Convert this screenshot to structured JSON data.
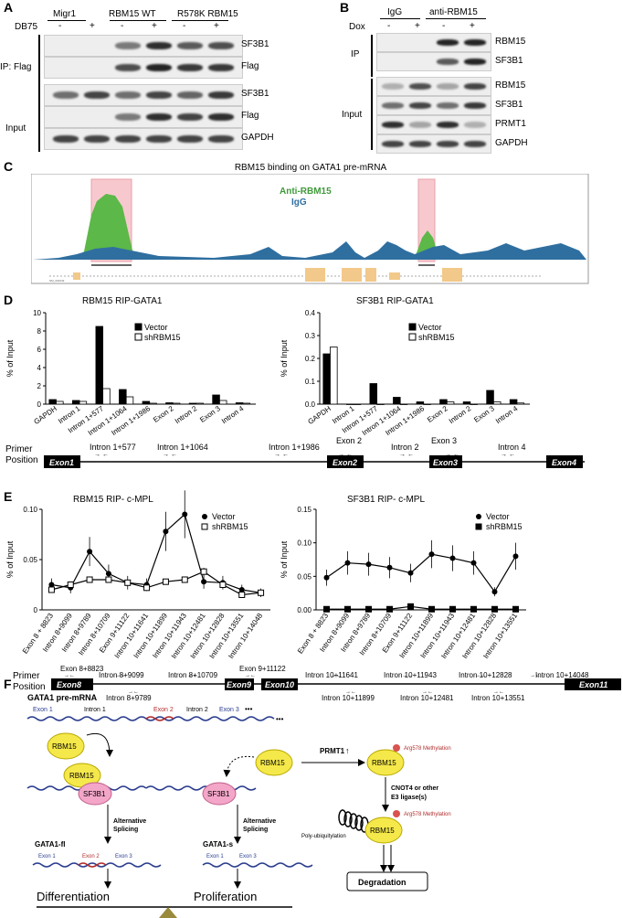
{
  "panels": {
    "a": "A",
    "b": "B",
    "c": "C",
    "d": "D",
    "e": "E",
    "f": "F"
  },
  "panel_a": {
    "groups": [
      "Migr1",
      "RBM15 WT",
      "R578K RBM15"
    ],
    "treatment": "DB75",
    "signs": [
      "-",
      "+",
      "-",
      "+",
      "-",
      "+"
    ],
    "ip_label": "IP: Flag",
    "input_label": "Input",
    "blots": [
      "SF3B1",
      "Flag",
      "SF3B1",
      "Flag",
      "GAPDH"
    ],
    "band_levels": [
      [
        0,
        0,
        0.55,
        0.9,
        0.7,
        0.75
      ],
      [
        0,
        0,
        0.75,
        0.95,
        0.85,
        0.85
      ],
      [
        0.6,
        0.8,
        0.6,
        0.8,
        0.65,
        0.85
      ],
      [
        0,
        0,
        0.55,
        0.9,
        0.8,
        0.9
      ],
      [
        0.8,
        0.8,
        0.8,
        0.8,
        0.8,
        0.8
      ]
    ]
  },
  "panel_b": {
    "groups": [
      "IgG",
      "anti-RBM15"
    ],
    "treatment": "Dox",
    "signs": [
      "-",
      "+",
      "-",
      "+"
    ],
    "ip_label": "IP",
    "input_label": "Input",
    "blots": [
      "RBM15",
      "SF3B1",
      "RBM15",
      "SF3B1",
      "PRMT1",
      "GAPDH"
    ],
    "band_levels": [
      [
        0,
        0,
        0.95,
        0.95
      ],
      [
        0,
        0,
        0.7,
        0.95
      ],
      [
        0.3,
        0.75,
        0.35,
        0.8
      ],
      [
        0.6,
        0.8,
        0.6,
        0.85
      ],
      [
        0.9,
        0.35,
        0.9,
        0.3
      ],
      [
        0.8,
        0.8,
        0.8,
        0.8
      ]
    ]
  },
  "panel_c": {
    "title": "RBM15 binding on GATA1 pre-mRNA",
    "legend": [
      "Anti-RBM15",
      "IgG"
    ],
    "transcript_label": "NM_002049",
    "colors": {
      "anti": "#5cb848",
      "igg": "#2f6fa0",
      "highlight": "#f7c9cf",
      "exon": "#f2c98a"
    }
  },
  "panel_d": {
    "charts": [
      {
        "title": "RBM15 RIP-GATA1",
        "ylabel": "% of Input",
        "ylim": [
          0,
          10
        ],
        "yticks": [
          "0",
          "2",
          "4",
          "6",
          "8",
          "10"
        ],
        "legend": [
          "Vector",
          "shRBM15"
        ],
        "chart_data": {
          "type": "bar",
          "categories": [
            "GAPDH",
            "Intron 1",
            "Intron 1+577",
            "Intron 1+1064",
            "Intron 1+1986",
            "Exon 2",
            "Intron 2",
            "Exon 3",
            "Intron 4"
          ],
          "series": [
            {
              "name": "Vector",
              "values": [
                0.5,
                0.4,
                8.5,
                1.6,
                0.3,
                0.15,
                0.1,
                1.0,
                0.15
              ]
            },
            {
              "name": "shRBM15",
              "values": [
                0.3,
                0.3,
                1.7,
                0.8,
                0.1,
                0.1,
                0.1,
                0.4,
                0.1
              ]
            }
          ]
        }
      },
      {
        "title": "SF3B1 RIP-GATA1",
        "ylabel": "% of Input",
        "ylim": [
          0,
          0.4
        ],
        "yticks": [
          "0.0",
          "0.1",
          "0.2",
          "0.3",
          "0.4"
        ],
        "legend": [
          "Vector",
          "shRBM15"
        ],
        "chart_data": {
          "type": "bar",
          "categories": [
            "GAPDH",
            "Intron 1",
            "Intron 1+577",
            "Intron 1+1064",
            "Intron 1+1986",
            "Exon 2",
            "Intron 2",
            "Exon 3",
            "Intron 4"
          ],
          "series": [
            {
              "name": "Vector",
              "values": [
                0.22,
                0.0,
                0.09,
                0.03,
                0.01,
                0.02,
                0.01,
                0.06,
                0.02
              ]
            },
            {
              "name": "shRBM15",
              "values": [
                0.25,
                0.0,
                0.0,
                0.0,
                0.0,
                0.01,
                0.0,
                0.01,
                0.005
              ]
            }
          ]
        }
      }
    ],
    "primer_label_1": "Primer",
    "primer_label_2": "Position",
    "exons": [
      "Exon1",
      "Exon2",
      "Exon3",
      "Exon4"
    ],
    "primers_top": [
      "Intron 1+577",
      "Intron 1+1064",
      "Intron 1+1986",
      "Exon 2",
      "Intron 2",
      "Exon 3",
      "Intron 4"
    ]
  },
  "panel_e": {
    "charts": [
      {
        "title": "RBM15 RIP- c-MPL",
        "ylabel": "% of Input",
        "ylim": [
          0,
          0.1
        ],
        "yticks": [
          "0",
          "0.05",
          "0.10"
        ],
        "legend": [
          "Vector",
          "shRBM15"
        ],
        "chart_data": {
          "type": "line",
          "categories": [
            "Exon 8 + 8823",
            "Intron 8+9099",
            "Intron 8+9789",
            "Intron 8+10709",
            "Exon 9+11122",
            "Intron 10+11641",
            "Intron 10+11899",
            "Intron 10+11943",
            "Intron 10+12481",
            "Intron 10+12828",
            "Intron 10+13551",
            "Intron 10+14048"
          ],
          "series": [
            {
              "name": "Vector",
              "values": [
                0.025,
                0.022,
                0.058,
                0.036,
                0.027,
                0.025,
                0.078,
                0.095,
                0.028,
                0.027,
                0.02,
                0.017
              ]
            },
            {
              "name": "shRBM15",
              "values": [
                0.02,
                0.025,
                0.03,
                0.03,
                0.027,
                0.022,
                0.028,
                0.03,
                0.038,
                0.025,
                0.015,
                0.017
              ]
            }
          ]
        }
      },
      {
        "title": "SF3B1 RIP- c-MPL",
        "ylabel": "% of Input",
        "ylim": [
          0,
          0.15
        ],
        "yticks": [
          "0.00",
          "0.05",
          "0.10",
          "0.15"
        ],
        "legend": [
          "Vector",
          "shRBM15"
        ],
        "chart_data": {
          "type": "line",
          "categories": [
            "Exon 8 + 8823",
            "Intron 8+9099",
            "Intron 8+9789",
            "Intron 8+10709",
            "Exon 9+11122",
            "Intron 10+11899",
            "Intron 10+11943",
            "Intron 10+12481",
            "Intron 10+12828",
            "Intron 10+13551"
          ],
          "series": [
            {
              "name": "Vector",
              "values": [
                0.048,
                0.07,
                0.068,
                0.063,
                0.055,
                0.083,
                0.077,
                0.07,
                0.027,
                0.08
              ]
            },
            {
              "name": "shRBM15",
              "values": [
                0.001,
                0.001,
                0.001,
                0.001,
                0.005,
                0.001,
                0.001,
                0.001,
                0.001,
                0.001
              ]
            }
          ]
        }
      }
    ],
    "primer_label_1": "Primer",
    "primer_label_2": "Position",
    "exons": [
      "Exon8",
      "Exon9",
      "Exon10",
      "Exon11"
    ],
    "primers_top": [
      "Exon 8+8823",
      "Intron 8+9099",
      "Intron 8+10709",
      "Exon 9+11122",
      "Intron 10+11641",
      "Intron 10+11943",
      "Intron 10+12828",
      "Intron 10+14048"
    ],
    "primers_bottom": [
      "Intron 8+9789",
      "Intron 10+11899",
      "Intron 10+12481",
      "Intron 10+13551"
    ]
  },
  "panel_f": {
    "premrna_title": "GATA1 pre-mRNA",
    "premrna_labels": [
      "Exon 1",
      "Intron 1",
      "Exon 2",
      "Intron 2",
      "Exon 3",
      "•••"
    ],
    "rbm15": "RBM15",
    "sf3b1": "SF3B1",
    "alt_splicing": "Alternative Splicing",
    "gata1_fl": "GATA1-fl",
    "gata1_s": "GATA1-s",
    "fl_labels": [
      "Exon 1",
      "Exon 2",
      "Exon 3",
      "•••"
    ],
    "s_labels": [
      "Exon 1",
      "Exon 3",
      "•••"
    ],
    "prmt1": "PRMT1",
    "arg578": "Arg578 Methylation",
    "cnot4": "CNOT4 or other",
    "e3": "E3 ligase(s)",
    "polyub": "Poly-ubiquitylation",
    "degradation": "Degradation",
    "differentiation": "Differentiation",
    "proliferation": "Proliferation",
    "colors": {
      "rbm15": "#f5e84a",
      "sf3b1": "#f4a6c9",
      "wave_blue": "#2b3d8f",
      "wave_red": "#b22d2d",
      "methyl": "#d9534f",
      "fulcrum": "#9a8a3c"
    }
  }
}
